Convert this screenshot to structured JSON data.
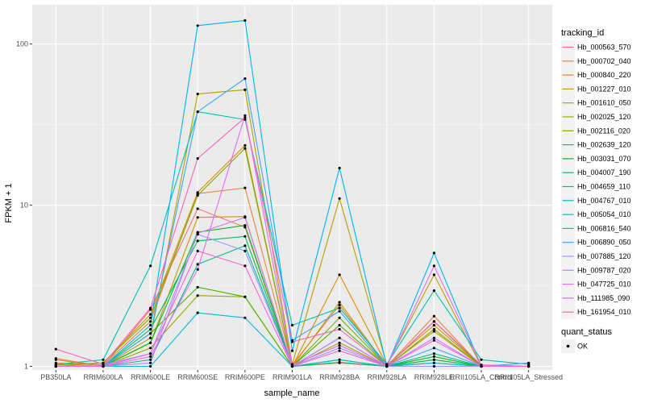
{
  "chart_data": {
    "type": "line",
    "x_label": "sample_name",
    "y_label": "FPKM + 1",
    "y_scale": "log10",
    "ylim": [
      0.95,
      175
    ],
    "y_ticks": [
      1,
      10,
      100
    ],
    "y_tick_labels": [
      "1",
      "10",
      "100"
    ],
    "categories": [
      "PB350LA",
      "RRIM600LA",
      "RRIM600LE",
      "RRIM600SE",
      "RRIM600PE",
      "RRIM901LA",
      "RRIM928BA",
      "RRIM928LA",
      "RRIM928LE",
      "RRII105LA_Control",
      "RRII105LA_Stressed"
    ],
    "legend_title": "tracking_id",
    "legend_position": "right",
    "point_legend_title": "quant_status",
    "point_legend_label": "OK",
    "background": "#ebebeb",
    "grid": true,
    "series": [
      {
        "name": "Hb_000563_570",
        "color": "#F8766D",
        "values": [
          1.12,
          1.0,
          2.25,
          9.5,
          7.3,
          1.0,
          1.05,
          1.0,
          1.05,
          1.0,
          1.0
        ]
      },
      {
        "name": "Hb_000702_040",
        "color": "#EC823C",
        "values": [
          1.05,
          1.02,
          1.9,
          11.8,
          12.8,
          1.02,
          2.4,
          1.0,
          2.05,
          1.0,
          1.0
        ]
      },
      {
        "name": "Hb_000840_220",
        "color": "#DD8D00",
        "values": [
          1.0,
          1.05,
          2.1,
          12.0,
          23.5,
          1.0,
          3.7,
          1.02,
          1.8,
          1.0,
          1.0
        ]
      },
      {
        "name": "Hb_001227_010",
        "color": "#CA9700",
        "values": [
          1.1,
          1.0,
          1.4,
          8.4,
          8.5,
          1.0,
          2.5,
          1.0,
          1.65,
          1.0,
          1.0
        ]
      },
      {
        "name": "Hb_001610_050",
        "color": "#B4A000",
        "values": [
          1.0,
          1.0,
          1.5,
          49.0,
          52.0,
          1.03,
          11.0,
          1.02,
          3.7,
          1.0,
          1.0
        ]
      },
      {
        "name": "Hb_002025_120",
        "color": "#9AA800",
        "values": [
          1.0,
          1.0,
          1.3,
          2.75,
          2.7,
          1.0,
          1.4,
          1.0,
          1.1,
          1.0,
          1.0
        ]
      },
      {
        "name": "Hb_002116_020",
        "color": "#7AAE00",
        "values": [
          1.02,
          1.05,
          2.0,
          11.5,
          22.5,
          1.0,
          2.0,
          1.0,
          1.7,
          1.0,
          1.0
        ]
      },
      {
        "name": "Hb_002639_120",
        "color": "#4AB300",
        "values": [
          1.0,
          1.0,
          1.6,
          3.1,
          2.7,
          1.0,
          1.8,
          1.0,
          1.9,
          1.0,
          1.0
        ]
      },
      {
        "name": "Hb_003031_070",
        "color": "#00B81F",
        "values": [
          1.0,
          1.0,
          1.4,
          6.8,
          7.5,
          1.0,
          1.1,
          1.0,
          1.15,
          1.0,
          1.0
        ]
      },
      {
        "name": "Hb_004007_190",
        "color": "#00BB60",
        "values": [
          1.0,
          1.0,
          1.7,
          6.0,
          6.4,
          1.0,
          1.06,
          1.0,
          1.1,
          1.0,
          1.0
        ]
      },
      {
        "name": "Hb_004659_110",
        "color": "#00BD8E",
        "values": [
          1.0,
          1.0,
          1.1,
          4.3,
          5.6,
          1.0,
          1.5,
          1.0,
          1.2,
          1.0,
          1.0
        ]
      },
      {
        "name": "Hb_004767_010",
        "color": "#00BFB4",
        "values": [
          1.03,
          1.1,
          4.2,
          38.0,
          34.0,
          1.8,
          2.3,
          1.03,
          2.95,
          1.1,
          1.03
        ]
      },
      {
        "name": "Hb_005054_010",
        "color": "#00BCD4",
        "values": [
          1.0,
          1.0,
          1.0,
          2.15,
          2.0,
          1.0,
          1.1,
          1.0,
          1.05,
          1.0,
          1.0
        ]
      },
      {
        "name": "Hb_006816_540",
        "color": "#00B4EF",
        "values": [
          1.0,
          1.0,
          1.8,
          130.0,
          140.0,
          1.25,
          17.0,
          1.0,
          5.05,
          1.0,
          1.0
        ]
      },
      {
        "name": "Hb_006890_050",
        "color": "#3FA4FF",
        "values": [
          1.0,
          1.0,
          1.6,
          38.0,
          61.0,
          1.45,
          2.2,
          1.0,
          1.3,
          1.0,
          1.05
        ]
      },
      {
        "name": "Hb_007885_120",
        "color": "#9A95FF",
        "values": [
          1.0,
          1.02,
          1.2,
          6.6,
          5.2,
          1.0,
          1.3,
          1.0,
          1.0,
          1.0,
          1.0
        ]
      },
      {
        "name": "Hb_009787_020",
        "color": "#C77CFF",
        "values": [
          1.0,
          1.0,
          1.05,
          6.7,
          8.4,
          1.0,
          1.5,
          1.0,
          1.5,
          1.0,
          1.0
        ]
      },
      {
        "name": "Hb_047725_010",
        "color": "#E76BF3",
        "values": [
          1.0,
          1.0,
          1.15,
          4.0,
          36.0,
          1.02,
          1.35,
          1.0,
          4.2,
          1.02,
          1.0
        ]
      },
      {
        "name": "Hb_111985_090",
        "color": "#FA62DB",
        "values": [
          1.0,
          1.0,
          1.2,
          5.2,
          4.2,
          1.0,
          1.25,
          1.0,
          1.45,
          1.0,
          1.0
        ]
      },
      {
        "name": "Hb_161954_010",
        "color": "#FF62BC",
        "values": [
          1.28,
          1.03,
          2.3,
          19.5,
          35.0,
          1.42,
          1.7,
          1.0,
          1.9,
          1.02,
          1.0
        ]
      }
    ]
  }
}
